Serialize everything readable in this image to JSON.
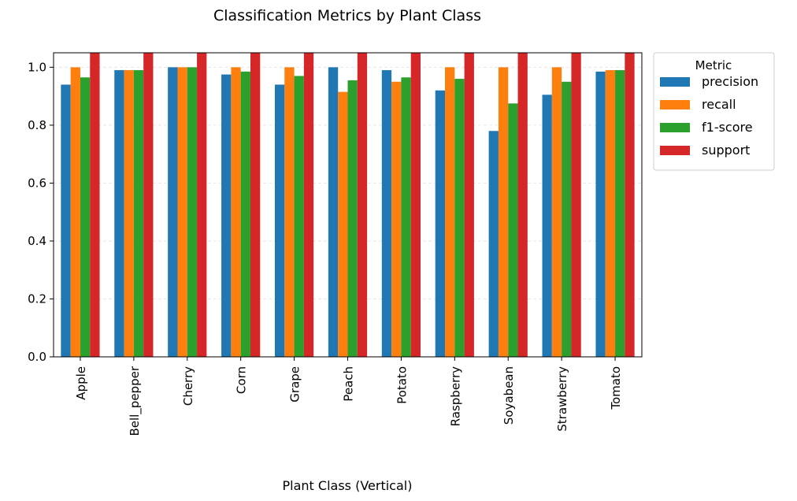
{
  "chart_data": {
    "type": "bar",
    "title": "Classification Metrics by Plant Class",
    "xlabel": "Plant Class (Vertical)",
    "ylabel": "",
    "ylim": [
      0,
      1.05
    ],
    "yticks": [
      "0.0",
      "0.2",
      "0.4",
      "0.6",
      "0.8",
      "1.0"
    ],
    "grid": "horizontal, dashed",
    "legend_title": "Metric",
    "legend_position": "outside right, top",
    "categories": [
      "Apple",
      "Bell_pepper",
      "Cherry",
      "Corn",
      "Grape",
      "Peach",
      "Potato",
      "Raspberry",
      "Soyabean",
      "Strawberry",
      "Tomato"
    ],
    "series": [
      {
        "name": "precision",
        "color": "#1f77b4",
        "values": [
          0.94,
          0.99,
          1.0,
          0.975,
          0.94,
          1.0,
          0.99,
          0.92,
          0.78,
          0.905,
          0.985
        ]
      },
      {
        "name": "recall",
        "color": "#ff7f0e",
        "values": [
          1.0,
          0.99,
          1.0,
          1.0,
          1.0,
          0.915,
          0.95,
          1.0,
          1.0,
          1.0,
          0.99
        ]
      },
      {
        "name": "f1-score",
        "color": "#2ca02c",
        "values": [
          0.965,
          0.99,
          1.0,
          0.985,
          0.97,
          0.955,
          0.965,
          0.96,
          0.875,
          0.95,
          0.99
        ]
      },
      {
        "name": "support",
        "color": "#d62728",
        "values": [
          1.05,
          1.05,
          1.05,
          1.05,
          1.05,
          1.05,
          1.05,
          1.05,
          1.05,
          1.05,
          1.05
        ],
        "note": "clipped above y-axis limit"
      }
    ]
  }
}
